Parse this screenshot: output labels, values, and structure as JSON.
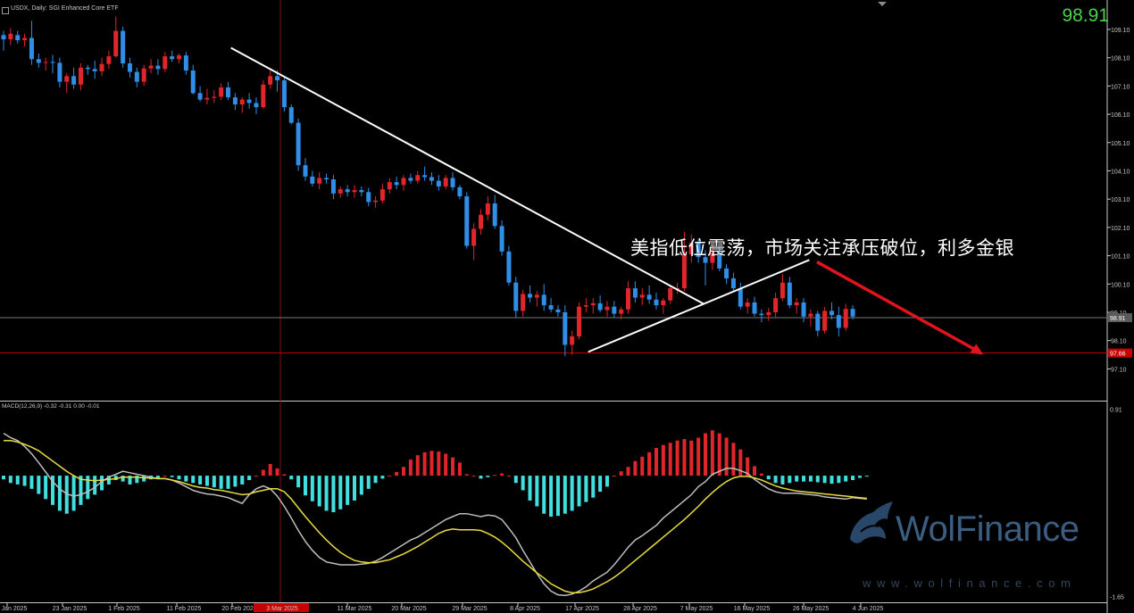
{
  "header": {
    "symbol_text": "USDX, Daily:  SGI Enhanced Core ETF",
    "current_price_large": "98.91"
  },
  "headline": "美指低位震荡，市场关注承压破位，利多金银",
  "macd_label": "MACD(12,26,9) -0.32 -0.31 0.00 -0.01",
  "watermark": {
    "brand": "WolFinance",
    "url": "www.wolfinance.com"
  },
  "colors": {
    "background": "#000000",
    "bull_candle": "#e0262a",
    "bear_candle": "#2f8fe8",
    "histogram_positive": "#e0262a",
    "histogram_negative": "#40e0e0",
    "macd_line": "#bdbdbd",
    "signal_line": "#e6dc40",
    "current_price_line": "#7a7a7a",
    "support_line": "#c80000",
    "trendline": "#ffffff",
    "forecast_arrow": "#e0141c",
    "price_text": "#4cd04c"
  },
  "chart_data": [
    {
      "type": "candlestick",
      "title": "USDX, Daily",
      "ylim": [
        96.3,
        109.7
      ],
      "y_ticks": [
        "109.10",
        "108.10",
        "107.10",
        "106.10",
        "105.10",
        "104.10",
        "103.10",
        "102.10",
        "101.10",
        "100.10",
        "99.10",
        "98.10",
        "97.10"
      ],
      "x_ticks": [
        "Jan 2025",
        "23 Jan 2025",
        "1 Feb 2025",
        "11 Feb 2025",
        "20 Feb 2025",
        "3 Mar 2025",
        "11 Mar 2025",
        "20 Mar 2025",
        "29 Mar 2025",
        "8 Apr 2025",
        "17 Apr 2025",
        "28 Apr 2025",
        "7 May 2025",
        "16 May 2025",
        "26 May 2025",
        "4 Jun 2025"
      ],
      "current_price_tag": "98.91",
      "current_price": 98.91,
      "support_tag": "97.66",
      "support_price": 97.66,
      "candles": [
        [
          108.9,
          109.05,
          108.35,
          108.75
        ],
        [
          108.75,
          109.15,
          108.55,
          108.95
        ],
        [
          108.9,
          109.05,
          108.6,
          108.72
        ],
        [
          108.72,
          108.95,
          108.5,
          108.8
        ],
        [
          108.8,
          109.4,
          107.85,
          108.05
        ],
        [
          108.05,
          108.25,
          107.75,
          107.92
        ],
        [
          107.92,
          108.1,
          107.65,
          107.95
        ],
        [
          107.95,
          108.2,
          107.55,
          107.92
        ],
        [
          107.92,
          108.1,
          107.05,
          107.25
        ],
        [
          107.25,
          107.55,
          106.85,
          107.45
        ],
        [
          107.45,
          107.75,
          107.0,
          107.15
        ],
        [
          107.15,
          107.9,
          106.95,
          107.75
        ],
        [
          107.75,
          107.85,
          107.5,
          107.7
        ],
        [
          107.7,
          108.0,
          107.35,
          107.62
        ],
        [
          107.62,
          108.1,
          107.45,
          107.88
        ],
        [
          107.88,
          108.35,
          107.7,
          108.15
        ],
        [
          108.15,
          109.55,
          108.1,
          109.05
        ],
        [
          109.05,
          109.2,
          107.75,
          107.9
        ],
        [
          107.9,
          108.1,
          107.4,
          107.6
        ],
        [
          107.6,
          107.75,
          107.05,
          107.25
        ],
        [
          107.25,
          107.85,
          107.1,
          107.72
        ],
        [
          107.72,
          108.05,
          107.55,
          107.82
        ],
        [
          107.82,
          108.05,
          107.5,
          107.7
        ],
        [
          107.7,
          108.3,
          107.6,
          108.15
        ],
        [
          108.15,
          108.35,
          107.95,
          108.05
        ],
        [
          108.05,
          108.25,
          107.9,
          108.18
        ],
        [
          108.18,
          108.3,
          107.5,
          107.65
        ],
        [
          107.65,
          107.85,
          106.8,
          106.85
        ],
        [
          106.85,
          107.1,
          106.55,
          106.62
        ],
        [
          106.62,
          107.0,
          106.45,
          106.68
        ],
        [
          106.68,
          106.95,
          106.5,
          106.72
        ],
        [
          106.72,
          107.2,
          106.6,
          107.05
        ],
        [
          107.05,
          107.25,
          106.6,
          106.7
        ],
        [
          106.7,
          106.85,
          106.25,
          106.45
        ],
        [
          106.45,
          106.7,
          106.15,
          106.62
        ],
        [
          106.62,
          106.85,
          106.3,
          106.5
        ],
        [
          106.5,
          106.7,
          106.1,
          106.35
        ],
        [
          106.35,
          107.3,
          106.3,
          107.15
        ],
        [
          107.15,
          107.65,
          107.0,
          107.45
        ],
        [
          107.45,
          107.65,
          106.9,
          107.3
        ],
        [
          107.3,
          107.4,
          106.2,
          106.35
        ],
        [
          106.35,
          106.45,
          105.75,
          105.8
        ],
        [
          105.8,
          105.95,
          104.1,
          104.3
        ],
        [
          104.3,
          104.55,
          103.75,
          103.9
        ],
        [
          103.9,
          104.1,
          103.55,
          103.65
        ],
        [
          103.65,
          104.05,
          103.45,
          103.85
        ],
        [
          103.85,
          104.0,
          103.65,
          103.8
        ],
        [
          103.8,
          103.95,
          103.1,
          103.3
        ],
        [
          103.3,
          103.55,
          103.15,
          103.45
        ],
        [
          103.45,
          103.6,
          103.2,
          103.35
        ],
        [
          103.35,
          103.6,
          103.15,
          103.42
        ],
        [
          103.42,
          103.55,
          103.2,
          103.35
        ],
        [
          103.35,
          103.5,
          102.85,
          103.0
        ],
        [
          103.0,
          103.2,
          102.8,
          103.05
        ],
        [
          103.05,
          103.65,
          102.95,
          103.45
        ],
        [
          103.45,
          103.85,
          103.3,
          103.7
        ],
        [
          103.7,
          103.9,
          103.45,
          103.6
        ],
        [
          103.6,
          103.95,
          103.4,
          103.85
        ],
        [
          103.85,
          104.0,
          103.65,
          103.75
        ],
        [
          103.75,
          104.1,
          103.65,
          103.95
        ],
        [
          103.95,
          104.25,
          103.75,
          103.88
        ],
        [
          103.88,
          104.05,
          103.6,
          103.75
        ],
        [
          103.75,
          103.95,
          103.4,
          103.55
        ],
        [
          103.55,
          103.95,
          103.45,
          103.85
        ],
        [
          103.85,
          104.05,
          103.4,
          103.52
        ],
        [
          103.52,
          103.6,
          103.1,
          103.2
        ],
        [
          103.2,
          103.35,
          101.35,
          101.45
        ],
        [
          101.45,
          102.25,
          100.95,
          102.05
        ],
        [
          102.05,
          102.75,
          101.85,
          102.55
        ],
        [
          102.55,
          103.2,
          102.35,
          102.95
        ],
        [
          102.95,
          103.25,
          102.05,
          102.15
        ],
        [
          102.15,
          102.35,
          101.1,
          101.25
        ],
        [
          101.25,
          101.45,
          100.05,
          100.15
        ],
        [
          100.15,
          100.35,
          98.9,
          99.15
        ],
        [
          99.15,
          99.9,
          98.95,
          99.75
        ],
        [
          99.75,
          100.05,
          99.45,
          99.62
        ],
        [
          99.62,
          99.85,
          99.3,
          99.72
        ],
        [
          99.72,
          100.1,
          99.15,
          99.35
        ],
        [
          99.35,
          99.6,
          99.1,
          99.2
        ],
        [
          99.2,
          99.35,
          98.95,
          99.1
        ],
        [
          99.1,
          99.35,
          97.55,
          97.95
        ],
        [
          97.95,
          98.45,
          97.6,
          98.25
        ],
        [
          98.25,
          99.45,
          98.15,
          99.3
        ],
        [
          99.3,
          99.6,
          99.1,
          99.35
        ],
        [
          99.35,
          99.6,
          99.05,
          99.42
        ],
        [
          99.42,
          99.7,
          99.1,
          99.18
        ],
        [
          99.18,
          99.5,
          98.95,
          99.3
        ],
        [
          99.3,
          99.5,
          98.9,
          99.05
        ],
        [
          99.05,
          99.3,
          98.85,
          99.2
        ],
        [
          99.2,
          100.2,
          99.05,
          99.95
        ],
        [
          99.95,
          100.2,
          99.45,
          99.62
        ],
        [
          99.62,
          99.95,
          99.35,
          99.72
        ],
        [
          99.72,
          100.05,
          99.4,
          99.55
        ],
        [
          99.55,
          99.8,
          99.2,
          99.35
        ],
        [
          99.35,
          99.6,
          99.05,
          99.52
        ],
        [
          99.52,
          100.05,
          99.4,
          99.95
        ],
        [
          99.95,
          100.15,
          99.75,
          99.95
        ],
        [
          99.95,
          101.95,
          99.85,
          101.15
        ],
        [
          101.15,
          101.85,
          100.85,
          101.55
        ],
        [
          101.55,
          101.7,
          100.85,
          101.05
        ],
        [
          101.05,
          101.3,
          100.05,
          100.85
        ],
        [
          100.85,
          101.45,
          100.6,
          101.2
        ],
        [
          101.2,
          101.4,
          100.55,
          100.65
        ],
        [
          100.65,
          100.8,
          100.1,
          100.3
        ],
        [
          100.3,
          100.5,
          99.85,
          99.95
        ],
        [
          99.95,
          100.15,
          99.2,
          99.3
        ],
        [
          99.3,
          99.6,
          99.05,
          99.45
        ],
        [
          99.45,
          99.65,
          98.95,
          99.05
        ],
        [
          99.05,
          99.2,
          98.75,
          99.0
        ],
        [
          99.0,
          99.25,
          98.8,
          99.1
        ],
        [
          99.1,
          99.8,
          98.9,
          99.6
        ],
        [
          99.6,
          100.45,
          99.5,
          100.15
        ],
        [
          100.15,
          100.35,
          99.25,
          99.35
        ],
        [
          99.35,
          99.6,
          99.05,
          99.45
        ],
        [
          99.45,
          99.6,
          98.75,
          98.95
        ],
        [
          98.95,
          99.2,
          98.6,
          99.05
        ],
        [
          99.05,
          99.15,
          98.25,
          98.45
        ],
        [
          98.45,
          99.3,
          98.35,
          99.15
        ],
        [
          99.15,
          99.45,
          98.85,
          99.0
        ],
        [
          99.0,
          99.3,
          98.25,
          98.55
        ],
        [
          98.55,
          99.4,
          98.45,
          99.22
        ],
        [
          99.22,
          99.35,
          98.85,
          98.95
        ]
      ]
    },
    {
      "type": "macd",
      "title": "MACD(12,26,9)",
      "ylim": [
        -1.72,
        0.99
      ],
      "y_ticks": [
        "0.91",
        "-1.65"
      ],
      "histogram": [
        -0.05,
        -0.1,
        -0.12,
        -0.14,
        -0.18,
        -0.25,
        -0.32,
        -0.4,
        -0.48,
        -0.52,
        -0.48,
        -0.4,
        -0.32,
        -0.26,
        -0.2,
        -0.12,
        -0.06,
        -0.08,
        -0.12,
        -0.1,
        -0.08,
        -0.05,
        -0.03,
        0.0,
        -0.02,
        -0.05,
        -0.08,
        -0.1,
        -0.12,
        -0.14,
        -0.16,
        -0.18,
        -0.18,
        -0.15,
        -0.12,
        -0.06,
        0.0,
        0.08,
        0.16,
        0.1,
        0.02,
        -0.05,
        -0.16,
        -0.27,
        -0.35,
        -0.42,
        -0.48,
        -0.5,
        -0.46,
        -0.4,
        -0.34,
        -0.26,
        -0.18,
        -0.1,
        -0.04,
        0.0,
        0.05,
        0.12,
        0.22,
        0.28,
        0.32,
        0.34,
        0.33,
        0.3,
        0.25,
        0.18,
        0.02,
        0.0,
        -0.04,
        -0.02,
        0.01,
        0.03,
        0.0,
        -0.1,
        -0.2,
        -0.34,
        -0.42,
        -0.52,
        -0.56,
        -0.55,
        -0.52,
        -0.48,
        -0.42,
        -0.36,
        -0.3,
        -0.22,
        -0.15,
        0.0,
        0.06,
        0.12,
        0.2,
        0.26,
        0.32,
        0.38,
        0.42,
        0.45,
        0.48,
        0.5,
        0.48,
        0.52,
        0.58,
        0.62,
        0.58,
        0.52,
        0.45,
        0.36,
        0.25,
        0.13,
        0.03,
        -0.05,
        -0.1,
        -0.12,
        -0.1,
        -0.08,
        -0.08,
        -0.08,
        -0.09,
        -0.1,
        -0.11,
        -0.1,
        -0.08,
        -0.06,
        -0.03,
        -0.01
      ],
      "macd_line": [
        0.58,
        0.52,
        0.48,
        0.4,
        0.3,
        0.18,
        0.05,
        -0.08,
        -0.18,
        -0.25,
        -0.28,
        -0.26,
        -0.22,
        -0.16,
        -0.08,
        -0.02,
        0.02,
        0.06,
        0.04,
        0.02,
        0.0,
        -0.02,
        -0.04,
        -0.04,
        -0.06,
        -0.1,
        -0.15,
        -0.2,
        -0.23,
        -0.25,
        -0.26,
        -0.28,
        -0.3,
        -0.34,
        -0.38,
        -0.26,
        -0.18,
        -0.14,
        -0.18,
        -0.28,
        -0.42,
        -0.58,
        -0.75,
        -0.9,
        -1.02,
        -1.12,
        -1.18,
        -1.2,
        -1.22,
        -1.22,
        -1.22,
        -1.21,
        -1.2,
        -1.17,
        -1.12,
        -1.06,
        -1.0,
        -0.94,
        -0.88,
        -0.84,
        -0.78,
        -0.72,
        -0.66,
        -0.6,
        -0.56,
        -0.52,
        -0.52,
        -0.54,
        -0.56,
        -0.54,
        -0.55,
        -0.6,
        -0.72,
        -0.85,
        -1.02,
        -1.18,
        -1.34,
        -1.48,
        -1.58,
        -1.63,
        -1.64,
        -1.62,
        -1.58,
        -1.52,
        -1.44,
        -1.38,
        -1.32,
        -1.22,
        -1.1,
        -0.98,
        -0.88,
        -0.82,
        -0.75,
        -0.68,
        -0.58,
        -0.5,
        -0.42,
        -0.34,
        -0.26,
        -0.15,
        -0.08,
        0.02,
        0.06,
        0.1,
        0.1,
        0.07,
        0.03,
        -0.05,
        -0.12,
        -0.18,
        -0.22,
        -0.24,
        -0.24,
        -0.24,
        -0.25,
        -0.26,
        -0.27,
        -0.29,
        -0.3,
        -0.31,
        -0.32,
        -0.3,
        -0.31,
        -0.32
      ],
      "signal_line": [
        0.48,
        0.48,
        0.46,
        0.43,
        0.39,
        0.34,
        0.27,
        0.2,
        0.13,
        0.06,
        0.0,
        -0.05,
        -0.06,
        -0.07,
        -0.06,
        -0.05,
        -0.04,
        -0.02,
        -0.02,
        -0.02,
        -0.03,
        -0.03,
        -0.04,
        -0.04,
        -0.06,
        -0.08,
        -0.11,
        -0.14,
        -0.16,
        -0.17,
        -0.19,
        -0.2,
        -0.22,
        -0.24,
        -0.26,
        -0.25,
        -0.22,
        -0.2,
        -0.18,
        -0.18,
        -0.22,
        -0.32,
        -0.44,
        -0.56,
        -0.67,
        -0.78,
        -0.88,
        -0.97,
        -1.05,
        -1.11,
        -1.16,
        -1.18,
        -1.19,
        -1.19,
        -1.17,
        -1.15,
        -1.11,
        -1.07,
        -1.02,
        -0.97,
        -0.91,
        -0.85,
        -0.79,
        -0.75,
        -0.73,
        -0.74,
        -0.74,
        -0.74,
        -0.75,
        -0.79,
        -0.84,
        -0.91,
        -0.99,
        -1.08,
        -1.17,
        -1.25,
        -1.33,
        -1.4,
        -1.48,
        -1.53,
        -1.58,
        -1.6,
        -1.6,
        -1.58,
        -1.55,
        -1.5,
        -1.45,
        -1.39,
        -1.32,
        -1.24,
        -1.16,
        -1.08,
        -1.0,
        -0.92,
        -0.84,
        -0.76,
        -0.68,
        -0.6,
        -0.51,
        -0.42,
        -0.32,
        -0.23,
        -0.15,
        -0.08,
        -0.03,
        -0.01,
        -0.01,
        -0.03,
        -0.06,
        -0.1,
        -0.14,
        -0.17,
        -0.19,
        -0.21,
        -0.22,
        -0.23,
        -0.24,
        -0.25,
        -0.26,
        -0.27,
        -0.28,
        -0.29,
        -0.3,
        -0.31
      ]
    }
  ]
}
